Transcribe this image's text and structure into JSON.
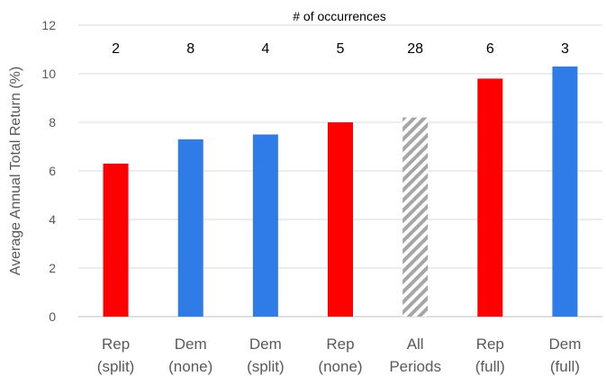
{
  "chart_data": {
    "type": "bar",
    "title": "",
    "annotation": "# of occurrences",
    "ylabel": "Average Annual Total Return (%)",
    "xlabel": "",
    "ylim": [
      0,
      12
    ],
    "yticks": [
      0,
      2,
      4,
      6,
      8,
      10,
      12
    ],
    "grid": true,
    "categories": [
      [
        "Rep",
        "(split)"
      ],
      [
        "Dem",
        "(none)"
      ],
      [
        "Dem",
        "(split)"
      ],
      [
        "Rep",
        "(none)"
      ],
      [
        "All",
        "Periods"
      ],
      [
        "Rep",
        "(full)"
      ],
      [
        "Dem",
        "(full)"
      ]
    ],
    "values": [
      6.3,
      7.3,
      7.5,
      8.0,
      8.2,
      9.8,
      10.3
    ],
    "occurrences": [
      "2",
      "8",
      "4",
      "5",
      "28",
      "6",
      "3"
    ],
    "bar_styles": [
      "red",
      "blue",
      "blue",
      "red",
      "hatched",
      "red",
      "blue"
    ],
    "colors": {
      "red": "#ff0000",
      "blue": "#2f7be8",
      "hatch": "#a6a6a6",
      "grid": "#d9d9d9"
    }
  }
}
